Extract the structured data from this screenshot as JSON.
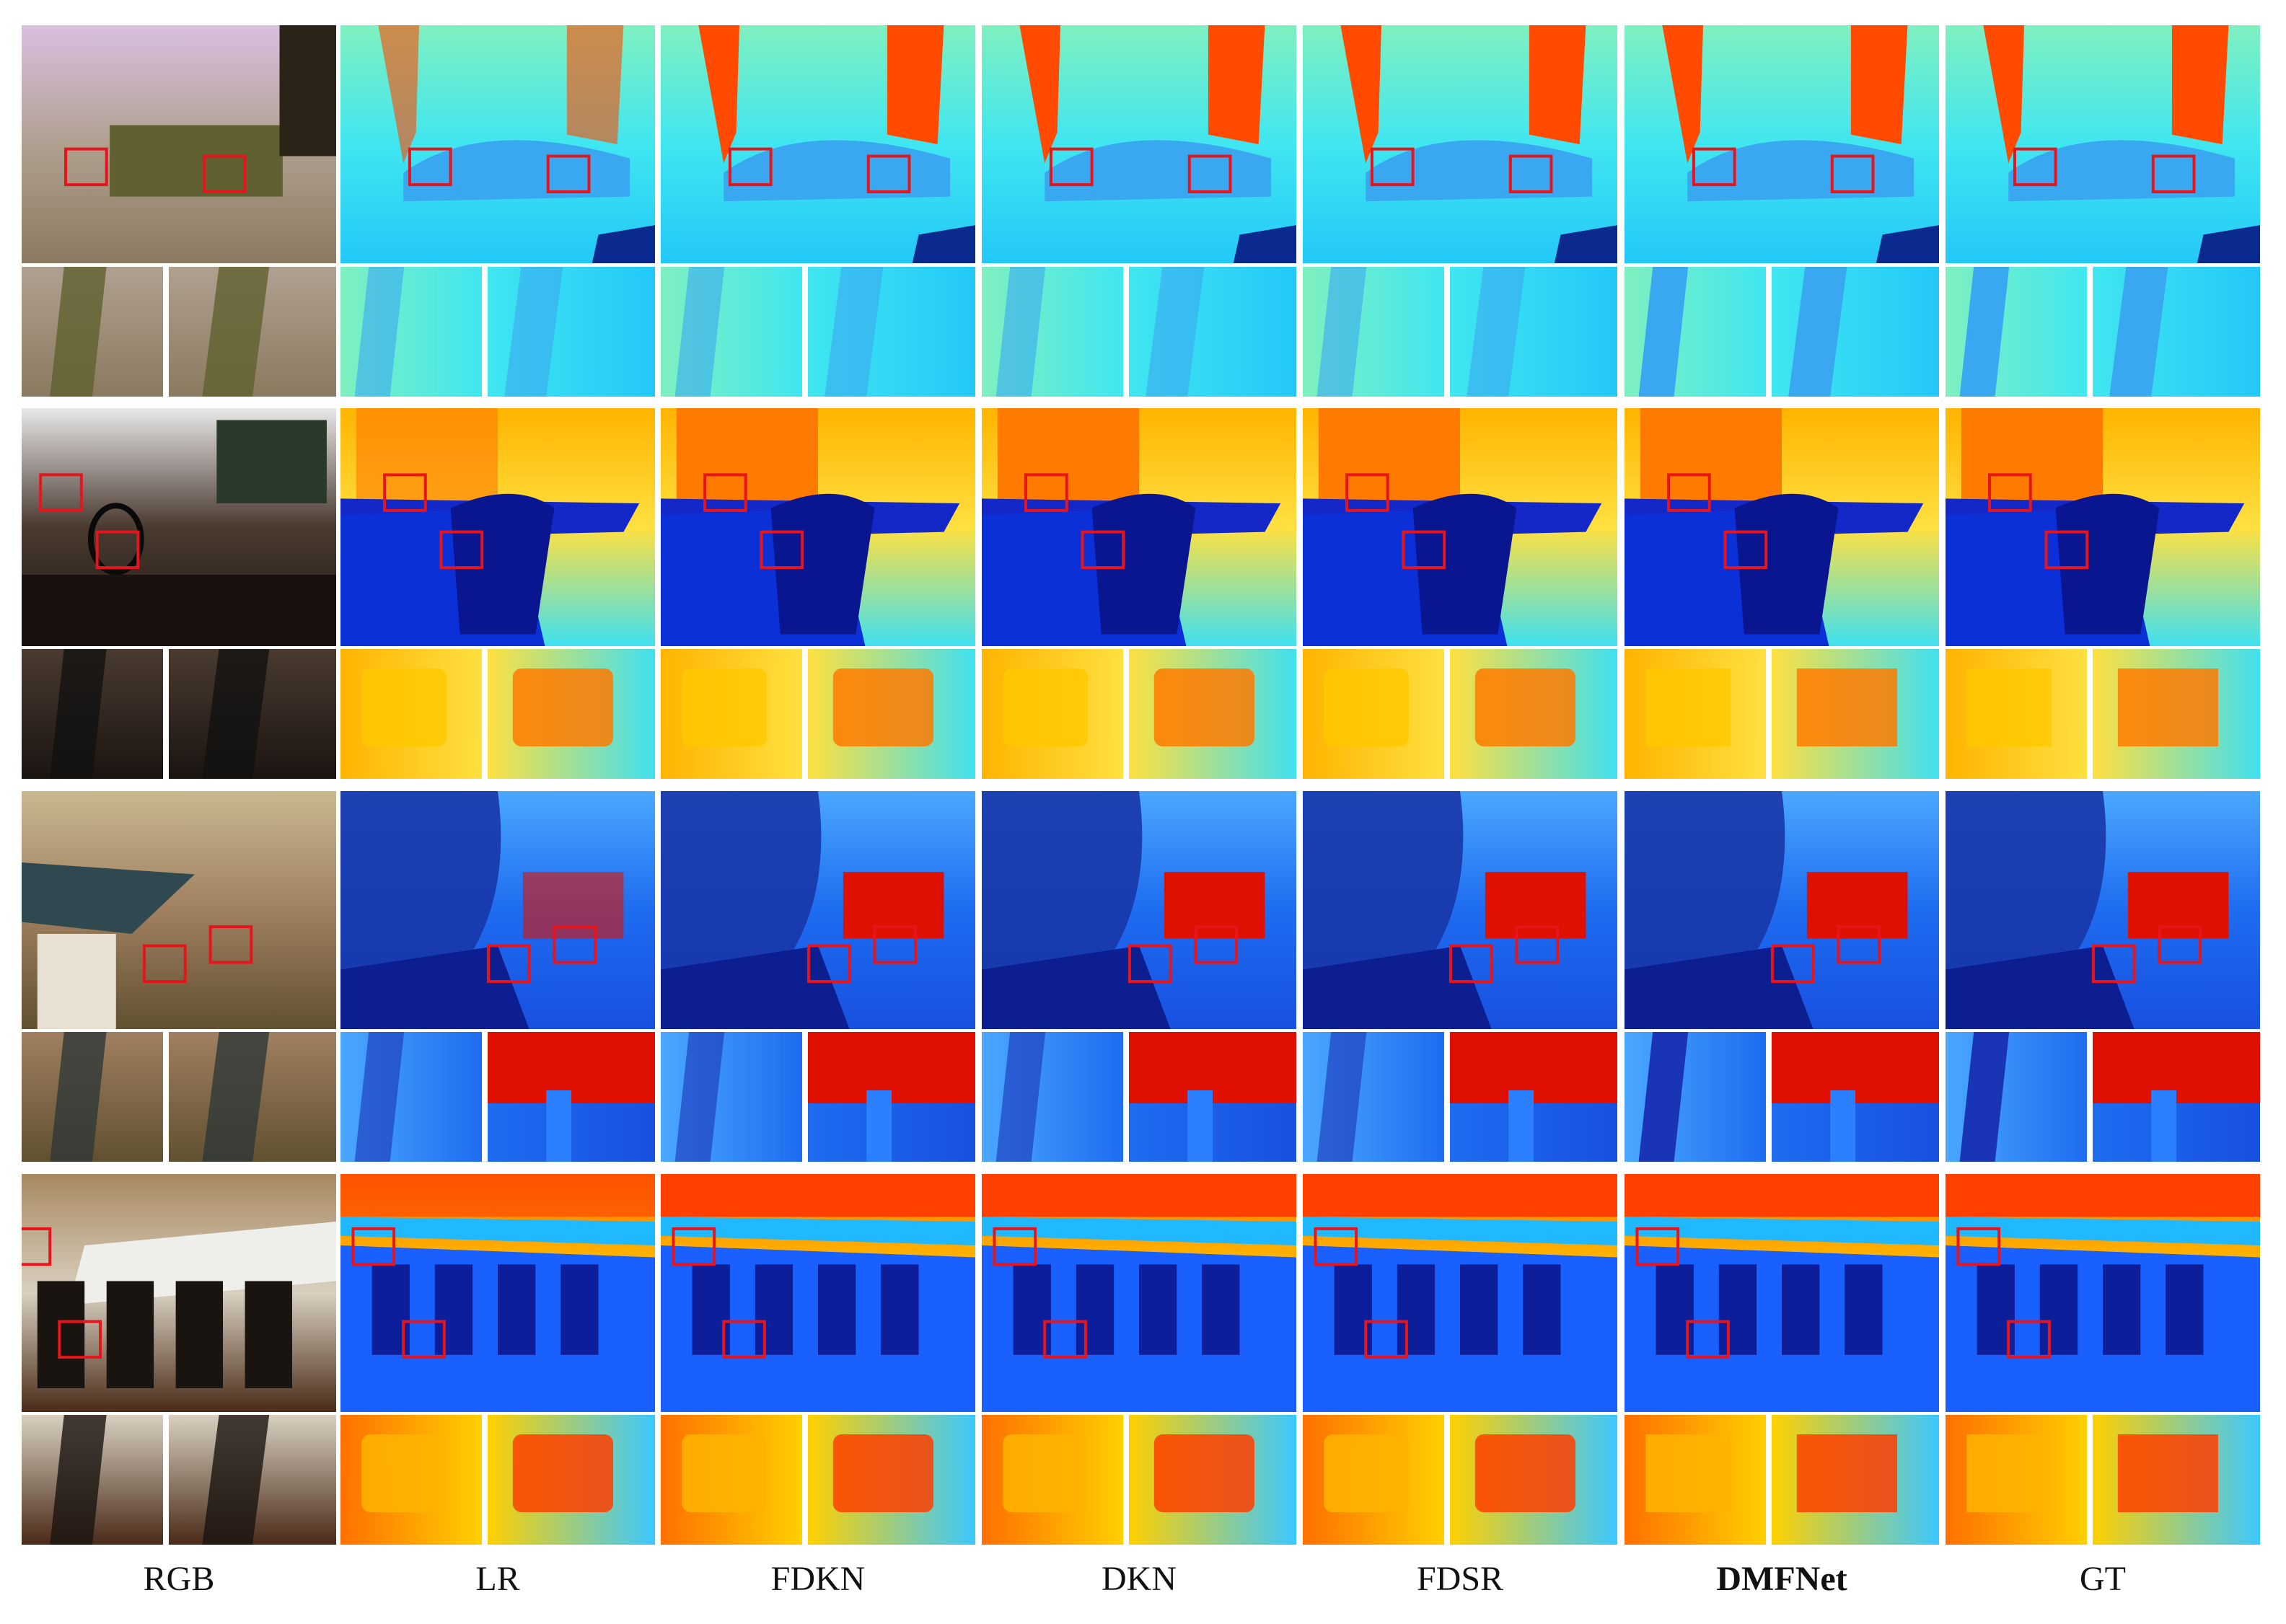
{
  "figure": {
    "column_labels": [
      {
        "id": "rgb",
        "text": "RGB",
        "bold": false
      },
      {
        "id": "lr",
        "text": "LR",
        "bold": false
      },
      {
        "id": "fdkn",
        "text": "FDKN",
        "bold": false
      },
      {
        "id": "dkn",
        "text": "DKN",
        "bold": false
      },
      {
        "id": "fdsr",
        "text": "FDSR",
        "bold": false
      },
      {
        "id": "dmfnet",
        "text": "DMFNet",
        "bold": true
      },
      {
        "id": "gt",
        "text": "GT",
        "bold": false
      }
    ],
    "rows": [
      {
        "scene": "living-room-sofa"
      },
      {
        "scene": "dining-chairs"
      },
      {
        "scene": "kitchen-dining"
      },
      {
        "scene": "dining-table-chairs"
      }
    ],
    "colors": {
      "jet_far": "#d40000",
      "jet_mid": "#ffd000",
      "jet_near": "#0a1eb4",
      "jet_cyan": "#3ff0ff",
      "highlight_box": "#e8141c"
    }
  }
}
